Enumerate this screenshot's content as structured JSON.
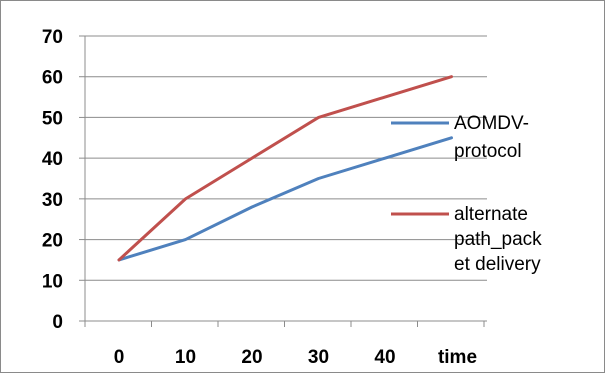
{
  "chart_data": {
    "type": "line",
    "title": "",
    "xlabel": "",
    "ylabel": "",
    "x": [
      "0",
      "10",
      "20",
      "30",
      "40",
      "time"
    ],
    "ylim": [
      0,
      70
    ],
    "yticks": [
      0,
      10,
      20,
      30,
      40,
      50,
      60,
      70
    ],
    "grid": "horizontal",
    "legend_position": "right",
    "series": [
      {
        "name": "AOMDV-protocol",
        "legend_lines": [
          "AOMDV-",
          "protocol"
        ],
        "color": "#4f81bd",
        "values": [
          15,
          20,
          28,
          35,
          40,
          45
        ]
      },
      {
        "name": "alternate path_packet delivery",
        "legend_lines": [
          "alternate",
          "path_pack",
          "et delivery"
        ],
        "color": "#c0504d",
        "values": [
          15,
          30,
          40,
          50,
          55,
          60
        ]
      }
    ]
  }
}
